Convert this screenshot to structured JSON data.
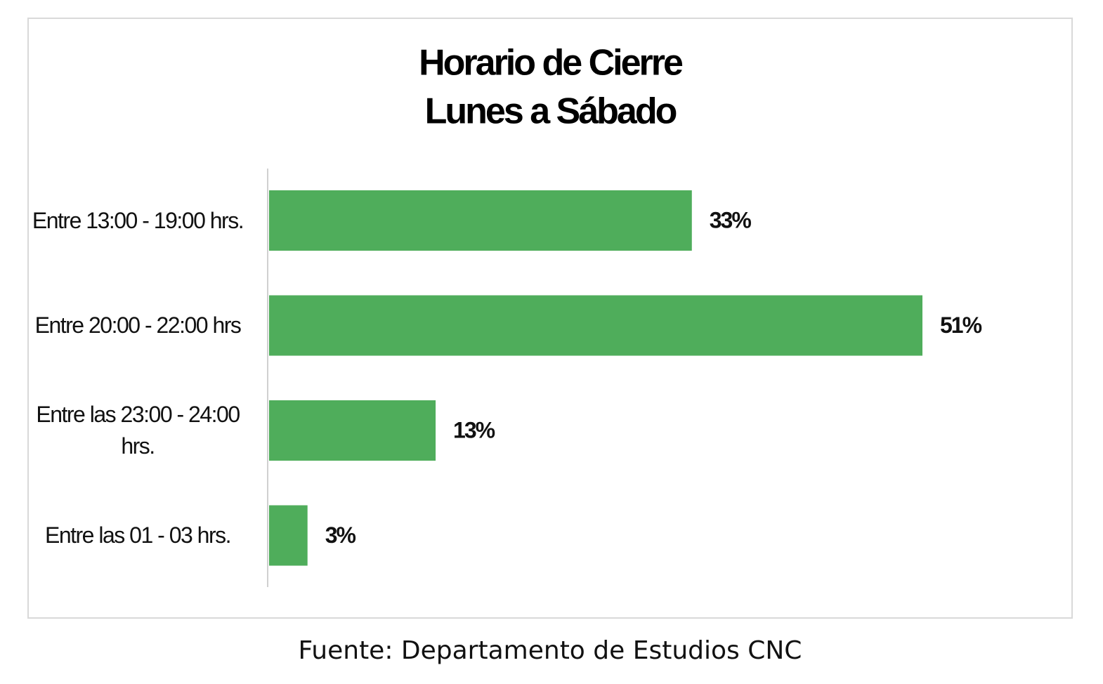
{
  "chart_data": {
    "type": "bar",
    "orientation": "horizontal",
    "title": "Horario de Cierre",
    "subtitle": "Lunes a Sábado",
    "categories": [
      "Entre 13:00 - 19:00 hrs.",
      "Entre 20:00 - 22:00 hrs",
      "Entre las 23:00 - 24:00 hrs.",
      "Entre las 01 - 03 hrs."
    ],
    "values": [
      33,
      51,
      13,
      3
    ],
    "value_labels": [
      "33%",
      "51%",
      "13%",
      "3%"
    ],
    "color": "#4fad5b",
    "source": "Fuente: Departamento de Estudios CNC"
  }
}
